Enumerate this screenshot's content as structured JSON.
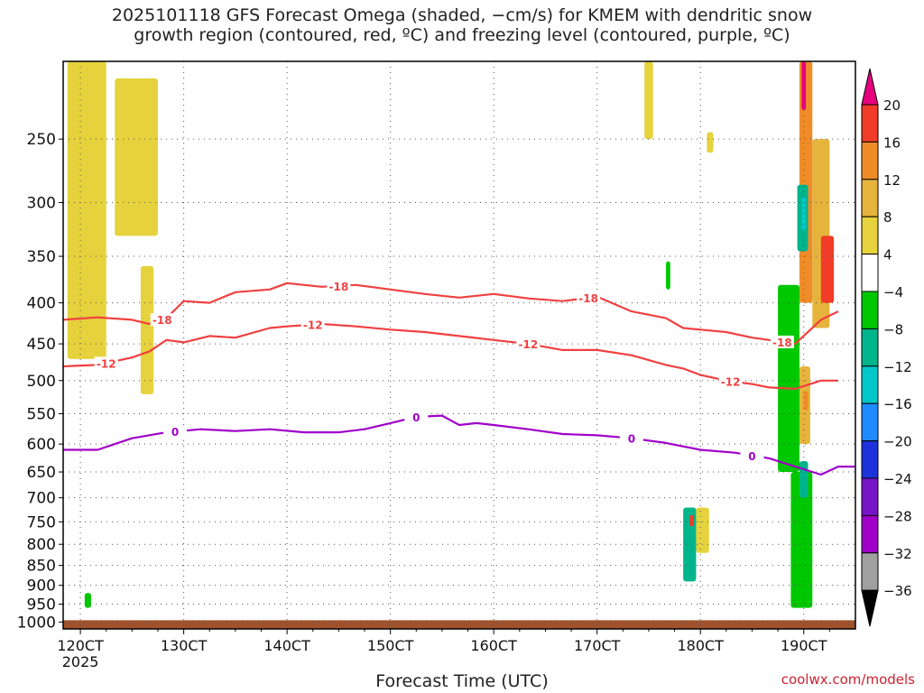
{
  "title_line1": "2025101118 GFS Forecast Omega (shaded, −cm/s) for KMEM with dendritic snow",
  "title_line2": "growth region (contoured, red, ºC) and freezing level (contoured, purple, ºC)",
  "credit": "coolwx.com/models",
  "chart_data": {
    "type": "heatmap",
    "title": "2025101118 GFS Forecast Omega (shaded, −cm/s) for KMEM with dendritic snow growth region (contoured, red, ºC) and freezing level (contoured, purple, ºC)",
    "xlabel": "Forecast Time (UTC)",
    "ylabel": "",
    "x_ticks": [
      "120CT",
      "130CT",
      "140CT",
      "150CT",
      "160CT",
      "170CT",
      "180CT",
      "190CT"
    ],
    "x_tick_hours": [
      0,
      24,
      48,
      72,
      96,
      120,
      144,
      168
    ],
    "x_sublabel": "2025",
    "xlim_hours": [
      -4,
      180
    ],
    "y_ticks": [
      250,
      300,
      350,
      400,
      450,
      500,
      550,
      600,
      650,
      700,
      750,
      800,
      850,
      900,
      950,
      1000
    ],
    "ylim_hpa": [
      200,
      1020
    ],
    "y_log_scale": true,
    "grid": true,
    "colorbar": {
      "tick_labels": [
        "20",
        "16",
        "12",
        "8",
        "4",
        "−4",
        "−8",
        "−12",
        "−16",
        "−20",
        "−24",
        "−28",
        "−32",
        "−36"
      ],
      "colors": [
        "#e6007e",
        "#f03c28",
        "#f08c28",
        "#e6b43c",
        "#e6d23c",
        "#ffffff",
        "#00c800",
        "#00b48c",
        "#00c8c8",
        "#1e8cff",
        "#1e32dc",
        "#7814c8",
        "#a000c8",
        "#a0a0a0"
      ]
    },
    "contours": [
      {
        "label": "-18",
        "color": "#f04040",
        "label_x_hours": [
          19,
          60,
          118,
          163
        ],
        "x": [
          -4,
          4,
          12,
          16,
          20,
          24,
          30,
          36,
          44,
          48,
          56,
          64,
          72,
          80,
          88,
          96,
          104,
          112,
          120,
          128,
          136,
          140,
          144,
          150,
          156,
          160,
          166,
          172,
          176
        ],
        "y": [
          420,
          417,
          420,
          425,
          418,
          398,
          400,
          388,
          385,
          378,
          382,
          380,
          385,
          390,
          394,
          390,
          395,
          398,
          393,
          410,
          418,
          430,
          432,
          435,
          442,
          445,
          450,
          420,
          410
        ]
      },
      {
        "label": "-12",
        "color": "#f04040",
        "label_x_hours": [
          6,
          54,
          104,
          151
        ],
        "x": [
          -4,
          4,
          12,
          16,
          20,
          24,
          30,
          36,
          44,
          48,
          56,
          64,
          72,
          80,
          88,
          96,
          104,
          112,
          120,
          128,
          136,
          140,
          144,
          150,
          156,
          160,
          166,
          172,
          176
        ],
        "y": [
          480,
          478,
          468,
          460,
          445,
          448,
          440,
          442,
          430,
          428,
          425,
          428,
          432,
          435,
          440,
          445,
          450,
          458,
          458,
          465,
          478,
          483,
          492,
          500,
          505,
          510,
          512,
          500,
          500
        ]
      },
      {
        "label": "0",
        "color": "#a000c8",
        "label_x_hours": [
          22,
          78,
          128,
          156
        ],
        "x": [
          -4,
          4,
          8,
          12,
          20,
          28,
          36,
          44,
          52,
          60,
          66,
          72,
          78,
          84,
          88,
          92,
          96,
          104,
          112,
          120,
          128,
          136,
          144,
          152,
          160,
          166,
          172,
          176,
          180
        ],
        "y": [
          610,
          610,
          600,
          590,
          580,
          575,
          578,
          575,
          580,
          580,
          575,
          565,
          555,
          553,
          568,
          565,
          568,
          575,
          583,
          585,
          590,
          598,
          610,
          615,
          625,
          640,
          655,
          640,
          640
        ]
      }
    ],
    "omega_regions": [
      {
        "x_hours": [
          -3,
          6
        ],
        "p_hpa": [
          200,
          470
        ],
        "value": 5
      },
      {
        "x_hours": [
          8,
          18
        ],
        "p_hpa": [
          210,
          330
        ],
        "value": 5
      },
      {
        "x_hours": [
          14,
          17
        ],
        "p_hpa": [
          360,
          520
        ],
        "value": 5
      },
      {
        "x_hours": [
          1,
          2.5
        ],
        "p_hpa": [
          920,
          960
        ],
        "value": -7
      },
      {
        "x_hours": [
          131,
          133
        ],
        "p_hpa": [
          200,
          250
        ],
        "value": 5
      },
      {
        "x_hours": [
          140,
          143
        ],
        "p_hpa": [
          720,
          890
        ],
        "value": -8
      },
      {
        "x_hours": [
          143,
          146
        ],
        "p_hpa": [
          720,
          820
        ],
        "value": 6
      },
      {
        "x_hours": [
          141.5,
          142.5
        ],
        "p_hpa": [
          735,
          760
        ],
        "value": 18
      },
      {
        "x_hours": [
          145.5,
          147
        ],
        "p_hpa": [
          245,
          260
        ],
        "value": 5
      },
      {
        "x_hours": [
          136,
          137
        ],
        "p_hpa": [
          355,
          385
        ],
        "value": -7
      },
      {
        "x_hours": [
          162,
          167
        ],
        "p_hpa": [
          380,
          650
        ],
        "value": -7
      },
      {
        "x_hours": [
          165,
          170
        ],
        "p_hpa": [
          650,
          960
        ],
        "value": -7
      },
      {
        "x_hours": [
          167,
          169
        ],
        "p_hpa": [
          630,
          700
        ],
        "value": -11
      },
      {
        "x_hours": [
          167,
          169.5
        ],
        "p_hpa": [
          480,
          600
        ],
        "value": 8
      },
      {
        "x_hours": [
          168,
          169
        ],
        "p_hpa": [
          515,
          545
        ],
        "value": 14
      },
      {
        "x_hours": [
          167,
          170
        ],
        "p_hpa": [
          200,
          400
        ],
        "value": 12
      },
      {
        "x_hours": [
          167.5,
          168.5
        ],
        "p_hpa": [
          200,
          230
        ],
        "value": 20
      },
      {
        "x_hours": [
          166.5,
          169
        ],
        "p_hpa": [
          285,
          345
        ],
        "value": -10
      },
      {
        "x_hours": [
          167.5,
          168.5
        ],
        "p_hpa": [
          295,
          325
        ],
        "value": -15
      },
      {
        "x_hours": [
          170,
          174
        ],
        "p_hpa": [
          250,
          430
        ],
        "value": 9
      },
      {
        "x_hours": [
          172,
          175
        ],
        "p_hpa": [
          330,
          400
        ],
        "value": 19
      }
    ],
    "surface_band_hpa": [
      1000,
      1020
    ]
  }
}
